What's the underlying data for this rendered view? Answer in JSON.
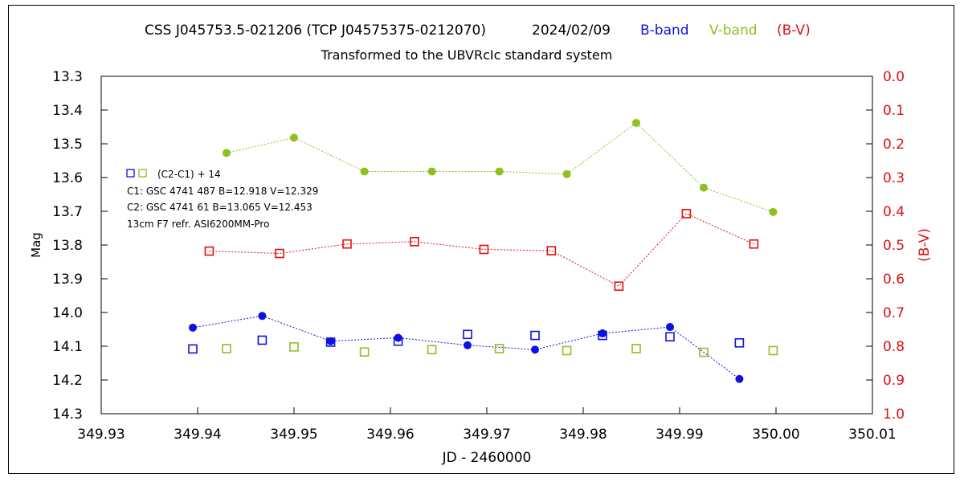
{
  "title": {
    "star": "CSS J045753.5-021206 (TCP J04575375-0212070)",
    "date": "2024/02/09",
    "b_label": "B-band",
    "v_label": "V-band",
    "bv_label": "(B-V)",
    "subtitle": "Transformed to the UBVRcIc standard system"
  },
  "annotations": {
    "comp_label": "(C2-C1) + 14",
    "c1": "C1: GSC 4741 487  B=12.918  V=12.329",
    "c2": "C2: GSC 4741 61   B=13.065  V=12.453",
    "equip": "13cm F7 refr.   ASI6200MM-Pro"
  },
  "colors": {
    "b": "#1010e0",
    "v": "#90c020",
    "bv": "#e01010",
    "axis": "#000000"
  },
  "chart_data": {
    "type": "scatter",
    "xlabel": "JD - 2460000",
    "ylabel": "Mag",
    "y2label": "(B-V)",
    "xlim": [
      349.93,
      350.01
    ],
    "ylim": [
      13.3,
      14.3
    ],
    "y2lim": [
      0.0,
      1.0
    ],
    "y_inverted": true,
    "x_ticks": [
      "349.93",
      "349.94",
      "349.95",
      "349.96",
      "349.97",
      "349.98",
      "349.99",
      "350.00",
      "350.01"
    ],
    "y_ticks": [
      "13.3",
      "13.4",
      "13.5",
      "13.6",
      "13.7",
      "13.8",
      "13.9",
      "14.0",
      "14.1",
      "14.2",
      "14.3"
    ],
    "y2_ticks": [
      "0.0",
      "0.1",
      "0.2",
      "0.3",
      "0.4",
      "0.5",
      "0.6",
      "0.7",
      "0.8",
      "0.9",
      "1.0"
    ],
    "grid": false,
    "series": [
      {
        "name": "B-band",
        "color": "#1010e0",
        "marker": "filled-circle",
        "axis": "left",
        "x": [
          349.9395,
          349.9467,
          349.9538,
          349.9608,
          349.968,
          349.975,
          349.982,
          349.989,
          349.9962
        ],
        "y": [
          14.045,
          14.01,
          14.085,
          14.075,
          14.097,
          14.11,
          14.062,
          14.043,
          14.197
        ]
      },
      {
        "name": "V-band",
        "color": "#90c020",
        "marker": "filled-circle",
        "axis": "left",
        "x": [
          349.943,
          349.95,
          349.9573,
          349.9643,
          349.9713,
          349.9783,
          349.9855,
          349.9925,
          349.9997
        ],
        "y": [
          13.527,
          13.482,
          13.582,
          13.582,
          13.582,
          13.59,
          13.438,
          13.63,
          13.702
        ]
      },
      {
        "name": "(B-V)",
        "color": "#e01010",
        "marker": "open-square",
        "axis": "right",
        "x": [
          349.9412,
          349.9485,
          349.9555,
          349.9625,
          349.9697,
          349.9767,
          349.9837,
          349.9907,
          349.9977
        ],
        "y": [
          0.518,
          0.525,
          0.497,
          0.49,
          0.513,
          0.517,
          0.622,
          0.407,
          0.497
        ]
      },
      {
        "name": "B (C2-C1)+14",
        "color": "#1010e0",
        "marker": "open-square",
        "axis": "left",
        "x": [
          349.9395,
          349.9467,
          349.9538,
          349.9608,
          349.968,
          349.975,
          349.982,
          349.989,
          349.9962
        ],
        "y": [
          14.108,
          14.082,
          14.088,
          14.085,
          14.065,
          14.068,
          14.068,
          14.072,
          14.09
        ]
      },
      {
        "name": "V (C2-C1)+14",
        "color": "#90c020",
        "marker": "open-square",
        "axis": "left",
        "x": [
          349.943,
          349.95,
          349.9573,
          349.9643,
          349.9713,
          349.9783,
          349.9855,
          349.9925,
          349.9997
        ],
        "y": [
          14.107,
          14.102,
          14.117,
          14.11,
          14.107,
          14.113,
          14.107,
          14.118,
          14.113
        ]
      }
    ]
  }
}
